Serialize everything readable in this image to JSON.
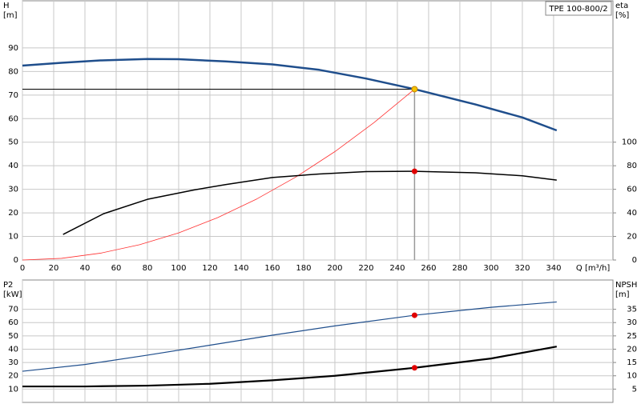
{
  "chart_data": [
    {
      "type": "line",
      "label_box": "TPE 100-800/2",
      "ylabel": "H",
      "yunit": "[m]",
      "y2label": "eta",
      "y2unit": "[%]",
      "xlabel": "Q [m³/h]",
      "xlim": [
        0,
        378
      ],
      "xticks": [
        0,
        20,
        40,
        60,
        80,
        100,
        120,
        140,
        160,
        180,
        200,
        220,
        240,
        260,
        280,
        300,
        320,
        340
      ],
      "ylim": [
        0,
        110
      ],
      "yticks": [
        0,
        10,
        20,
        30,
        40,
        50,
        60,
        70,
        80,
        90
      ],
      "y2lim": [
        0,
        220
      ],
      "y2ticks": [
        0,
        20,
        40,
        60,
        80,
        100
      ],
      "grid": true,
      "series": [
        {
          "name": "H",
          "color": "#1f4e8c",
          "width": 2.5,
          "x": [
            0,
            25,
            50,
            80,
            100,
            130,
            160,
            190,
            220,
            251,
            290,
            320,
            342
          ],
          "values": [
            82.5,
            83.7,
            84.7,
            85.3,
            85.2,
            84.3,
            83,
            80.7,
            77,
            72.5,
            66,
            60.5,
            55
          ]
        },
        {
          "name": "system",
          "color": "#ff3030",
          "width": 0.8,
          "x": [
            0,
            25,
            50,
            75,
            100,
            125,
            150,
            175,
            200,
            225,
            251
          ],
          "values": [
            0,
            0.7,
            2.9,
            6.5,
            11.5,
            18,
            25.9,
            35.2,
            46,
            58.3,
            72.5
          ]
        },
        {
          "name": "eta",
          "color": "#000000",
          "width": 1.5,
          "axis": "y2",
          "x": [
            26,
            52,
            80,
            110,
            130,
            160,
            190,
            220,
            251,
            290,
            320,
            342
          ],
          "values": [
            21.7,
            39.3,
            51.5,
            59.5,
            64,
            70,
            73,
            75,
            75.3,
            74,
            71.5,
            67.8
          ]
        }
      ],
      "duty_point": {
        "x": 251,
        "y": 72.5,
        "y2": 75.3,
        "color": "#f5c400",
        "color2": "#e00000"
      }
    },
    {
      "type": "line",
      "ylabel": "P2",
      "yunit": "[kW]",
      "y2label": "NPSH",
      "y2unit": "[m]",
      "xlim": [
        0,
        378
      ],
      "xticks": [
        0,
        20,
        40,
        60,
        80,
        100,
        120,
        140,
        160,
        180,
        200,
        220,
        240,
        260,
        280,
        300,
        320,
        340
      ],
      "ylim": [
        0,
        92
      ],
      "yticks": [
        10,
        20,
        30,
        40,
        50,
        60,
        70
      ],
      "y2lim": [
        0,
        46
      ],
      "y2ticks": [
        5,
        10,
        15,
        20,
        25,
        30,
        35
      ],
      "grid": true,
      "series": [
        {
          "name": "P2",
          "color": "#1f4e8c",
          "width": 1.2,
          "x": [
            0,
            40,
            80,
            120,
            160,
            200,
            251,
            300,
            342
          ],
          "values": [
            23.4,
            28.5,
            35.5,
            43,
            50.5,
            57.5,
            65.5,
            71.5,
            75.5
          ]
        },
        {
          "name": "NPSH",
          "color": "#000000",
          "width": 2.2,
          "axis": "y2",
          "x": [
            0,
            40,
            80,
            120,
            160,
            200,
            251,
            300,
            342
          ],
          "values": [
            6,
            6,
            6.3,
            7,
            8.3,
            10,
            13,
            16.5,
            21
          ]
        }
      ],
      "duty_point": {
        "x": 251,
        "y": 65.5,
        "y2": 13,
        "color": "#e00000",
        "color2": "#e00000"
      }
    }
  ]
}
